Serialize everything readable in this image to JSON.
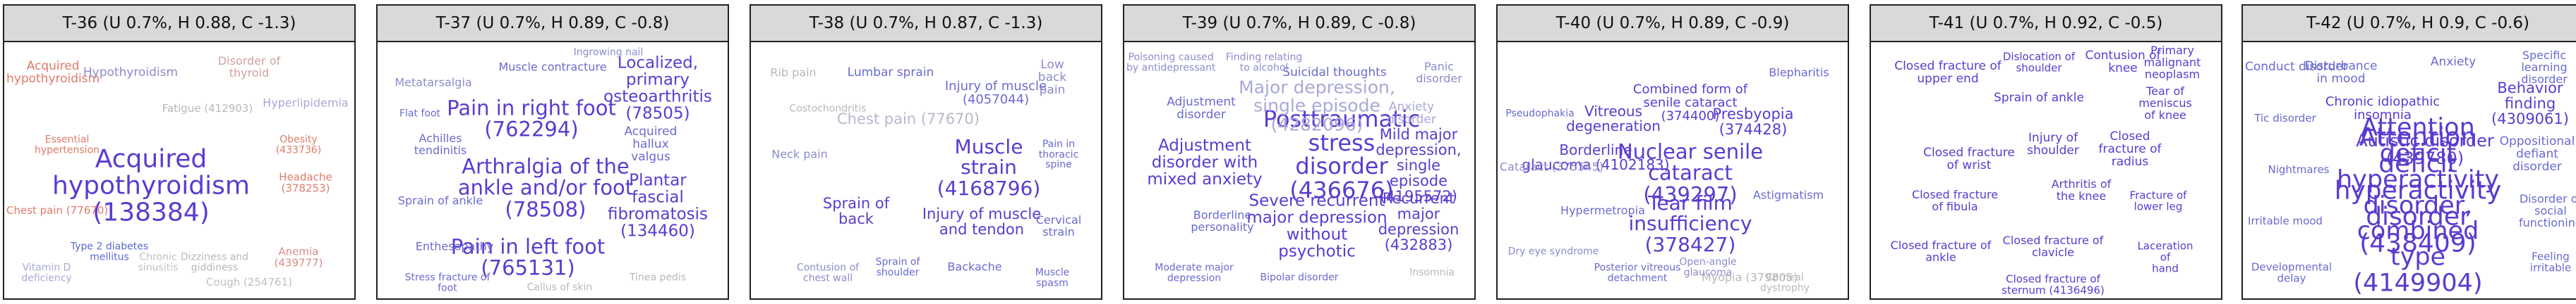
{
  "panels": [
    {
      "title": "T-36 (U 0.7%, H 0.88, C -1.3)",
      "words": [
        {
          "text": "Acquired\nhypothyroidism\n(138384)",
          "color": "#5a3ccf",
          "weight": 1.0
        },
        {
          "text": "Acquired\nhypothyroidism",
          "color": "#e07a6a",
          "weight": 0.3
        },
        {
          "text": "Hypothyroidism",
          "color": "#8c8ccc",
          "weight": 0.28
        },
        {
          "text": "Disorder of\nthyroid",
          "color": "#d3a0a0",
          "weight": 0.25
        },
        {
          "text": "Hyperlipidemia",
          "color": "#a9a9d9",
          "weight": 0.25
        },
        {
          "text": "Fatigue (412903)",
          "color": "#b8b8b8",
          "weight": 0.22
        },
        {
          "text": "Anemia (439777)",
          "color": "#d98b8b",
          "weight": 0.22
        },
        {
          "text": "Headache (378253)",
          "color": "#e07a6a",
          "weight": 0.22
        },
        {
          "text": "Cough (254761)",
          "color": "#c0c0c0",
          "weight": 0.22
        },
        {
          "text": "Chest pain (77670)",
          "color": "#e07a6a",
          "weight": 0.22
        },
        {
          "text": "Dizziness and\ngiddiness",
          "color": "#b8b8b8",
          "weight": 0.2
        },
        {
          "text": "Essential\nhypertension",
          "color": "#e07a6a",
          "weight": 0.2
        },
        {
          "text": "Type 2 diabetes\nmellitus",
          "color": "#5a6ad0",
          "weight": 0.2
        },
        {
          "text": "Vitamin D\ndeficiency",
          "color": "#a9a9d9",
          "weight": 0.2
        },
        {
          "text": "Obesity (433736)",
          "color": "#e07a6a",
          "weight": 0.2
        },
        {
          "text": "Chronic\nsinusitis",
          "color": "#c0c0c0",
          "weight": 0.2
        }
      ]
    },
    {
      "title": "T-37 (U 0.7%, H 0.89, C -0.8)",
      "words": [
        {
          "text": "Pain in right foot\n(762294)",
          "color": "#5a3ccf",
          "weight": 0.75
        },
        {
          "text": "Arthralgia of the\nankle and/or foot\n(78508)",
          "color": "#5a3ccf",
          "weight": 0.75
        },
        {
          "text": "Pain in left foot\n(765131)",
          "color": "#5a3ccf",
          "weight": 0.75
        },
        {
          "text": "Localized, primary\nosteoarthritis\n(78505)",
          "color": "#5a3ccf",
          "weight": 0.5
        },
        {
          "text": "Plantar fascial\nfibromatosis\n(134460)",
          "color": "#5a3ccf",
          "weight": 0.5
        },
        {
          "text": "Acquired hallux\nvalgus",
          "color": "#6a6ad0",
          "weight": 0.3
        },
        {
          "text": "Muscle contracture",
          "color": "#6a6ad0",
          "weight": 0.25
        },
        {
          "text": "Metatarsalgia",
          "color": "#8c8ccc",
          "weight": 0.25
        },
        {
          "text": "Achilles\ntendinitis",
          "color": "#6a6ad0",
          "weight": 0.25
        },
        {
          "text": "Enthesopathy",
          "color": "#6a6ad0",
          "weight": 0.25
        },
        {
          "text": "Sprain of ankle",
          "color": "#6a6ad0",
          "weight": 0.25
        },
        {
          "text": "Tinea pedis",
          "color": "#b8b8b8",
          "weight": 0.2
        },
        {
          "text": "Stress fracture of\nfoot",
          "color": "#6a6ad0",
          "weight": 0.2
        },
        {
          "text": "Ingrowing nail",
          "color": "#8c8ccc",
          "weight": 0.2
        },
        {
          "text": "Flat foot",
          "color": "#6a6ad0",
          "weight": 0.2
        },
        {
          "text": "Callus of skin",
          "color": "#b8b8b8",
          "weight": 0.2
        }
      ]
    },
    {
      "title": "T-38 (U 0.7%, H 0.87, C -1.3)",
      "words": [
        {
          "text": "Muscle strain\n(4168796)",
          "color": "#5a3ccf",
          "weight": 0.7
        },
        {
          "text": "Injury of muscle\nand tendon",
          "color": "#5a3ccf",
          "weight": 0.45
        },
        {
          "text": "Sprain of\nback",
          "color": "#5a3ccf",
          "weight": 0.45
        },
        {
          "text": "Chest pain (77670)",
          "color": "#b8b8cf",
          "weight": 0.45
        },
        {
          "text": "Injury of muscle\n(4057044)",
          "color": "#6a6ad0",
          "weight": 0.35
        },
        {
          "text": "Lumbar sprain",
          "color": "#6a6ad0",
          "weight": 0.3
        },
        {
          "text": "Low back pain",
          "color": "#8c8ccc",
          "weight": 0.3
        },
        {
          "text": "Neck pain",
          "color": "#8c8ccc",
          "weight": 0.25
        },
        {
          "text": "Rib pain",
          "color": "#b8b8b8",
          "weight": 0.25
        },
        {
          "text": "Cervical strain",
          "color": "#6a6ad0",
          "weight": 0.25
        },
        {
          "text": "Backache",
          "color": "#6a6ad0",
          "weight": 0.25
        },
        {
          "text": "Contusion of\nchest wall",
          "color": "#8c8ccc",
          "weight": 0.2
        },
        {
          "text": "Pain in thoracic\nspine",
          "color": "#6a6ad0",
          "weight": 0.2
        },
        {
          "text": "Sprain of\nshoulder",
          "color": "#6a6ad0",
          "weight": 0.2
        },
        {
          "text": "Costochondritis",
          "color": "#b8b8b8",
          "weight": 0.2
        },
        {
          "text": "Muscle spasm",
          "color": "#6a6ad0",
          "weight": 0.2
        }
      ]
    },
    {
      "title": "T-39 (U 0.7%, H 0.89, C -0.8)",
      "words": [
        {
          "text": "Posttraumatic\nstress disorder\n(436676)",
          "color": "#5a3ccf",
          "weight": 0.85
        },
        {
          "text": "Major depression,\nsingle episode\n(4282096)",
          "color": "#a9a9d9",
          "weight": 0.6
        },
        {
          "text": "Adjustment\ndisorder with\nmixed anxiety",
          "color": "#5a3ccf",
          "weight": 0.5
        },
        {
          "text": "Severe recurrent\nmajor depression\nwithout\npsychotic",
          "color": "#5a3ccf",
          "weight": 0.5
        },
        {
          "text": "Mild major\ndepression, single\nepisode (4195572)",
          "color": "#5a3ccf",
          "weight": 0.45
        },
        {
          "text": "Recurrent major\ndepression\n(432883)",
          "color": "#5a3ccf",
          "weight": 0.45
        },
        {
          "text": "Suicidal thoughts",
          "color": "#6a6ad0",
          "weight": 0.3
        },
        {
          "text": "Anxiety disorder",
          "color": "#a9a9d9",
          "weight": 0.3
        },
        {
          "text": "Adjustment\ndisorder",
          "color": "#6a6ad0",
          "weight": 0.3
        },
        {
          "text": "Panic disorder",
          "color": "#8c8ccc",
          "weight": 0.25
        },
        {
          "text": "Borderline\npersonality",
          "color": "#6a6ad0",
          "weight": 0.25
        },
        {
          "text": "Insomnia",
          "color": "#b8b8b8",
          "weight": 0.2
        },
        {
          "text": "Finding relating\nto alcohol",
          "color": "#8c8ccc",
          "weight": 0.2
        },
        {
          "text": "Bipolar disorder",
          "color": "#6a6ad0",
          "weight": 0.2
        },
        {
          "text": "Poisoning caused\nby antidepressant",
          "color": "#8c8ccc",
          "weight": 0.2
        },
        {
          "text": "Moderate major\ndepression",
          "color": "#6a6ad0",
          "weight": 0.2
        }
      ]
    },
    {
      "title": "T-40 (U 0.7%, H 0.89, C -0.9)",
      "words": [
        {
          "text": "Nuclear senile\ncataract (439297)",
          "color": "#5a3ccf",
          "weight": 0.75
        },
        {
          "text": "Tear film\ninsufficiency\n(378427)",
          "color": "#5a3ccf",
          "weight": 0.7
        },
        {
          "text": "Presbyopia\n(374428)",
          "color": "#5a3ccf",
          "weight": 0.45
        },
        {
          "text": "Vitreous\ndegeneration",
          "color": "#5a3ccf",
          "weight": 0.4
        },
        {
          "text": "Borderline\nglaucoma (4102183)",
          "color": "#5a3ccf",
          "weight": 0.4
        },
        {
          "text": "Combined form of\nsenile cataract\n(374400)",
          "color": "#5a3ccf",
          "weight": 0.35
        },
        {
          "text": "Myopia (379805)",
          "color": "#b8b8b8",
          "weight": 0.25
        },
        {
          "text": "Cataract (375545)",
          "color": "#8c8ccc",
          "weight": 0.25
        },
        {
          "text": "Hypermetropia",
          "color": "#6a6ad0",
          "weight": 0.25
        },
        {
          "text": "Astigmatism",
          "color": "#6a6ad0",
          "weight": 0.25
        },
        {
          "text": "Blepharitis",
          "color": "#6a6ad0",
          "weight": 0.25
        },
        {
          "text": "Posterior vitreous\ndetachment",
          "color": "#6a6ad0",
          "weight": 0.2
        },
        {
          "text": "Dry eye syndrome",
          "color": "#8c8ccc",
          "weight": 0.2
        },
        {
          "text": "Open-angle\nglaucoma",
          "color": "#8c8ccc",
          "weight": 0.2
        },
        {
          "text": "Pseudophakia",
          "color": "#6a6ad0",
          "weight": 0.2
        },
        {
          "text": "Corneal\ndystrophy",
          "color": "#b8b8b8",
          "weight": 0.2
        }
      ]
    },
    {
      "title": "T-41 (U 0.7%, H 0.92, C -0.5)",
      "words": [
        {
          "text": "Closed fracture of\nupper end",
          "color": "#5a3ccf",
          "weight": 0.3
        },
        {
          "text": "Sprain of ankle",
          "color": "#5a3ccf",
          "weight": 0.3
        },
        {
          "text": "Contusion of\nknee",
          "color": "#5a3ccf",
          "weight": 0.28
        },
        {
          "text": "Closed fracture\nof wrist",
          "color": "#5a3ccf",
          "weight": 0.28
        },
        {
          "text": "Injury of\nshoulder",
          "color": "#5a3ccf",
          "weight": 0.28
        },
        {
          "text": "Closed fracture of\nradius",
          "color": "#5a3ccf",
          "weight": 0.28
        },
        {
          "text": "Arthritis of\nthe knee",
          "color": "#5a3ccf",
          "weight": 0.25
        },
        {
          "text": "Primary malignant\nneoplasm",
          "color": "#5a3ccf",
          "weight": 0.25
        },
        {
          "text": "Closed fracture\nof fibula",
          "color": "#5a3ccf",
          "weight": 0.25
        },
        {
          "text": "Tear of meniscus\nof knee",
          "color": "#5a3ccf",
          "weight": 0.25
        },
        {
          "text": "Closed fracture of\nankle",
          "color": "#5a3ccf",
          "weight": 0.25
        },
        {
          "text": "Closed fracture of\nclavicle",
          "color": "#5a3ccf",
          "weight": 0.25
        },
        {
          "text": "Fracture of\nlower leg",
          "color": "#5a3ccf",
          "weight": 0.22
        },
        {
          "text": "Laceration of\nhand",
          "color": "#5a3ccf",
          "weight": 0.22
        },
        {
          "text": "Dislocation of\nshoulder",
          "color": "#5a3ccf",
          "weight": 0.22
        },
        {
          "text": "Closed fracture of\nsternum (4136496)",
          "color": "#5a3ccf",
          "weight": 0.22
        }
      ]
    },
    {
      "title": "T-42 (U 0.7%, H 0.9, C -0.6)",
      "words": [
        {
          "text": "Attention deficit\nhyperactivity\ndisorder (438409)",
          "color": "#5a3ccf",
          "weight": 1.0
        },
        {
          "text": "Attention deficit\nhyperactivity\ndisorder, combined\ntype (4149904)",
          "color": "#5a3ccf",
          "weight": 0.95
        },
        {
          "text": "Autistic disorder\n(439780)",
          "color": "#5a3ccf",
          "weight": 0.55
        },
        {
          "text": "Behavior finding\n(4309061)",
          "color": "#5a3ccf",
          "weight": 0.45
        },
        {
          "text": "Chronic idiopathic\ninsomnia",
          "color": "#5a3ccf",
          "weight": 0.35
        },
        {
          "text": "Disturbance\nin mood",
          "color": "#6a6ad0",
          "weight": 0.3
        },
        {
          "text": "Oppositional\ndefiant disorder",
          "color": "#6a6ad0",
          "weight": 0.3
        },
        {
          "text": "Conduct disorder",
          "color": "#6a6ad0",
          "weight": 0.28
        },
        {
          "text": "Anxiety",
          "color": "#6a6ad0",
          "weight": 0.28
        },
        {
          "text": "Disorder of\nsocial functioning",
          "color": "#6a6ad0",
          "weight": 0.25
        },
        {
          "text": "Specific learning\ndisorder",
          "color": "#6a6ad0",
          "weight": 0.25
        },
        {
          "text": "Tic disorder",
          "color": "#6a6ad0",
          "weight": 0.22
        },
        {
          "text": "Developmental\ndelay",
          "color": "#6a6ad0",
          "weight": 0.22
        },
        {
          "text": "Nightmares",
          "color": "#6a6ad0",
          "weight": 0.22
        },
        {
          "text": "Irritable mood",
          "color": "#6a6ad0",
          "weight": 0.22
        },
        {
          "text": "Feeling irritable",
          "color": "#6a6ad0",
          "weight": 0.22
        }
      ]
    }
  ]
}
